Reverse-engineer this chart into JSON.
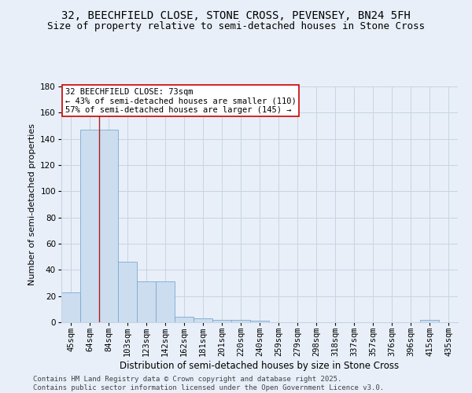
{
  "title1": "32, BEECHFIELD CLOSE, STONE CROSS, PEVENSEY, BN24 5FH",
  "title2": "Size of property relative to semi-detached houses in Stone Cross",
  "xlabel": "Distribution of semi-detached houses by size in Stone Cross",
  "ylabel": "Number of semi-detached properties",
  "categories": [
    "45sqm",
    "64sqm",
    "84sqm",
    "103sqm",
    "123sqm",
    "142sqm",
    "162sqm",
    "181sqm",
    "201sqm",
    "220sqm",
    "240sqm",
    "259sqm",
    "279sqm",
    "298sqm",
    "318sqm",
    "337sqm",
    "357sqm",
    "376sqm",
    "396sqm",
    "415sqm",
    "435sqm"
  ],
  "values": [
    23,
    147,
    147,
    46,
    31,
    31,
    4,
    3,
    2,
    2,
    1,
    0,
    0,
    0,
    0,
    0,
    0,
    0,
    0,
    2,
    0
  ],
  "bar_color": "#ccddf0",
  "bar_edgecolor": "#7aaad0",
  "ylim": [
    0,
    180
  ],
  "yticks": [
    0,
    20,
    40,
    60,
    80,
    100,
    120,
    140,
    160,
    180
  ],
  "property_bin_index": 1.5,
  "red_line_color": "#aa2020",
  "annotation_text": "32 BEECHFIELD CLOSE: 73sqm\n← 43% of semi-detached houses are smaller (110)\n57% of semi-detached houses are larger (145) →",
  "annotation_box_color": "#ffffff",
  "annotation_box_edgecolor": "#cc0000",
  "footer1": "Contains HM Land Registry data © Crown copyright and database right 2025.",
  "footer2": "Contains public sector information licensed under the Open Government Licence v3.0.",
  "background_color": "#e8eff8",
  "grid_color": "#c8d4e4",
  "title1_fontsize": 10,
  "title2_fontsize": 9,
  "xlabel_fontsize": 8.5,
  "ylabel_fontsize": 8,
  "annotation_fontsize": 7.5,
  "tick_fontsize": 7.5,
  "footer_fontsize": 6.5
}
